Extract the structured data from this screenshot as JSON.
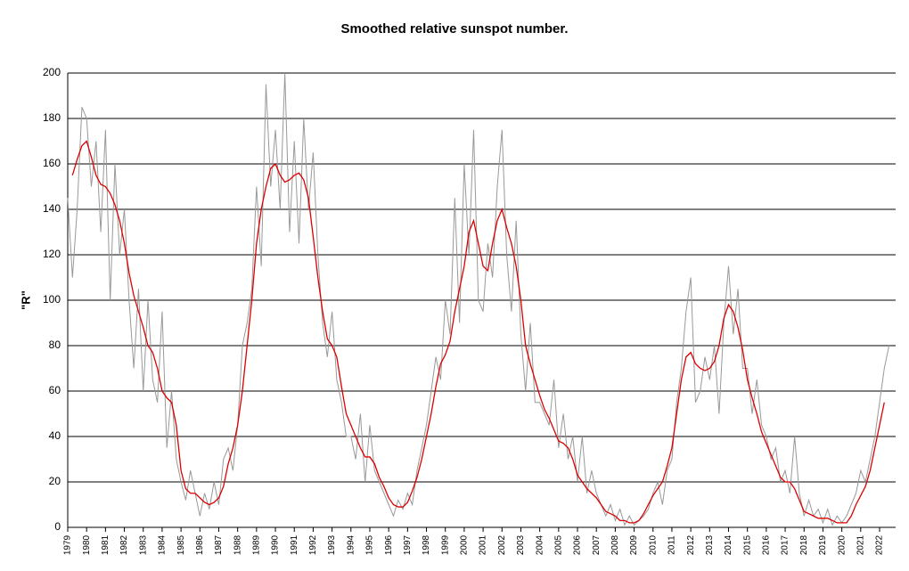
{
  "chart_data": {
    "type": "line",
    "title": "Smoothed relative sunspot number.",
    "y_label": "\"R\"",
    "x": [
      1979,
      1979.25,
      1979.5,
      1979.75,
      1980,
      1980.25,
      1980.5,
      1980.75,
      1981,
      1981.25,
      1981.5,
      1981.75,
      1982,
      1982.25,
      1982.5,
      1982.75,
      1983,
      1983.25,
      1983.5,
      1983.75,
      1984,
      1984.25,
      1984.5,
      1984.75,
      1985,
      1985.25,
      1985.5,
      1985.75,
      1986,
      1986.25,
      1986.5,
      1986.75,
      1987,
      1987.25,
      1987.5,
      1987.75,
      1988,
      1988.25,
      1988.5,
      1988.75,
      1989,
      1989.25,
      1989.5,
      1989.75,
      1990,
      1990.25,
      1990.5,
      1990.75,
      1991,
      1991.25,
      1991.5,
      1991.75,
      1992,
      1992.25,
      1992.5,
      1992.75,
      1993,
      1993.25,
      1993.5,
      1993.75,
      1994,
      1994.25,
      1994.5,
      1994.75,
      1995,
      1995.25,
      1995.5,
      1995.75,
      1996,
      1996.25,
      1996.5,
      1996.75,
      1997,
      1997.25,
      1997.5,
      1997.75,
      1998,
      1998.25,
      1998.5,
      1998.75,
      1999,
      1999.25,
      1999.5,
      1999.75,
      2000,
      2000.25,
      2000.5,
      2000.75,
      2001,
      2001.25,
      2001.5,
      2001.75,
      2002,
      2002.25,
      2002.5,
      2002.75,
      2003,
      2003.25,
      2003.5,
      2003.75,
      2004,
      2004.25,
      2004.5,
      2004.75,
      2005,
      2005.25,
      2005.5,
      2005.75,
      2006,
      2006.25,
      2006.5,
      2006.75,
      2007,
      2007.25,
      2007.5,
      2007.75,
      2008,
      2008.25,
      2008.5,
      2008.75,
      2009,
      2009.25,
      2009.5,
      2009.75,
      2010,
      2010.25,
      2010.5,
      2010.75,
      2011,
      2011.25,
      2011.5,
      2011.75,
      2012,
      2012.25,
      2012.5,
      2012.75,
      2013,
      2013.25,
      2013.5,
      2013.75,
      2014,
      2014.25,
      2014.5,
      2014.75,
      2015,
      2015.25,
      2015.5,
      2015.75,
      2016,
      2016.25,
      2016.5,
      2016.75,
      2017,
      2017.25,
      2017.5,
      2017.75,
      2018,
      2018.25,
      2018.5,
      2018.75,
      2019,
      2019.25,
      2019.5,
      2019.75,
      2020,
      2020.25,
      2020.5,
      2020.75,
      2021,
      2021.25,
      2021.5,
      2021.75,
      2022,
      2022.25,
      2022.5
    ],
    "series": [
      {
        "color": "#999999",
        "values": [
          145,
          110,
          140,
          185,
          180,
          150,
          170,
          130,
          175,
          100,
          160,
          120,
          140,
          100,
          70,
          105,
          60,
          100,
          65,
          55,
          95,
          35,
          60,
          30,
          20,
          12,
          25,
          15,
          5,
          15,
          8,
          20,
          10,
          30,
          35,
          25,
          45,
          80,
          90,
          105,
          150,
          115,
          195,
          150,
          175,
          140,
          200,
          130,
          170,
          125,
          180,
          140,
          165,
          120,
          90,
          75,
          95,
          65,
          55,
          40,
          40,
          30,
          50,
          20,
          45,
          25,
          20,
          15,
          10,
          5,
          12,
          8,
          15,
          10,
          25,
          35,
          45,
          60,
          75,
          65,
          100,
          85,
          145,
          90,
          160,
          120,
          175,
          100,
          95,
          125,
          110,
          150,
          175,
          120,
          95,
          135,
          85,
          60,
          90,
          55,
          55,
          50,
          45,
          65,
          35,
          50,
          30,
          40,
          20,
          40,
          15,
          25,
          15,
          10,
          5,
          10,
          3,
          8,
          1,
          5,
          1,
          3,
          5,
          8,
          15,
          20,
          10,
          25,
          30,
          55,
          70,
          95,
          110,
          55,
          60,
          75,
          65,
          80,
          50,
          90,
          115,
          85,
          105,
          70,
          70,
          50,
          65,
          45,
          40,
          30,
          35,
          20,
          25,
          15,
          40,
          15,
          5,
          12,
          5,
          8,
          2,
          8,
          1,
          5,
          2,
          5,
          10,
          15,
          25,
          20,
          30,
          40,
          55,
          70,
          80
        ]
      },
      {
        "color": "#dd0000",
        "values": [
          null,
          155,
          162,
          168,
          170,
          163,
          155,
          151,
          150,
          147,
          142,
          135,
          125,
          112,
          102,
          95,
          88,
          80,
          77,
          70,
          60,
          57,
          55,
          45,
          25,
          17,
          15,
          15,
          13,
          11,
          10,
          11,
          13,
          18,
          28,
          35,
          45,
          60,
          80,
          100,
          125,
          140,
          150,
          158,
          160,
          155,
          152,
          153,
          155,
          156,
          153,
          145,
          128,
          110,
          95,
          83,
          80,
          75,
          62,
          50,
          45,
          40,
          35,
          31,
          31,
          28,
          22,
          18,
          13,
          10,
          9,
          9,
          11,
          16,
          22,
          30,
          40,
          50,
          62,
          72,
          76,
          82,
          95,
          105,
          115,
          130,
          135,
          125,
          115,
          113,
          125,
          135,
          140,
          132,
          125,
          115,
          100,
          80,
          72,
          65,
          58,
          52,
          48,
          43,
          38,
          37,
          35,
          30,
          23,
          20,
          17,
          15,
          13,
          10,
          7,
          6,
          5,
          3,
          3,
          2,
          2,
          3,
          6,
          10,
          14,
          17,
          20,
          27,
          35,
          50,
          65,
          75,
          77,
          72,
          70,
          69,
          70,
          73,
          80,
          92,
          98,
          95,
          88,
          78,
          65,
          57,
          50,
          42,
          37,
          32,
          27,
          22,
          20,
          20,
          17,
          12,
          7,
          6,
          5,
          4,
          4,
          4,
          3,
          2,
          2,
          2,
          5,
          10,
          14,
          18,
          25,
          35,
          45,
          55,
          null
        ]
      }
    ],
    "xlim": [
      1979,
      2022.85
    ],
    "xticks": [
      1979,
      1980,
      1981,
      1982,
      1983,
      1984,
      1985,
      1986,
      1987,
      1988,
      1989,
      1990,
      1991,
      1992,
      1993,
      1994,
      1995,
      1996,
      1997,
      1998,
      1999,
      2000,
      2001,
      2002,
      2003,
      2004,
      2005,
      2006,
      2007,
      2008,
      2009,
      2010,
      2011,
      2012,
      2013,
      2014,
      2015,
      2016,
      2017,
      2018,
      2019,
      2020,
      2021,
      2022
    ],
    "ylim": [
      0,
      200
    ],
    "yticks": [
      0,
      20,
      40,
      60,
      80,
      100,
      120,
      140,
      160,
      180,
      200
    ],
    "grid": true
  }
}
